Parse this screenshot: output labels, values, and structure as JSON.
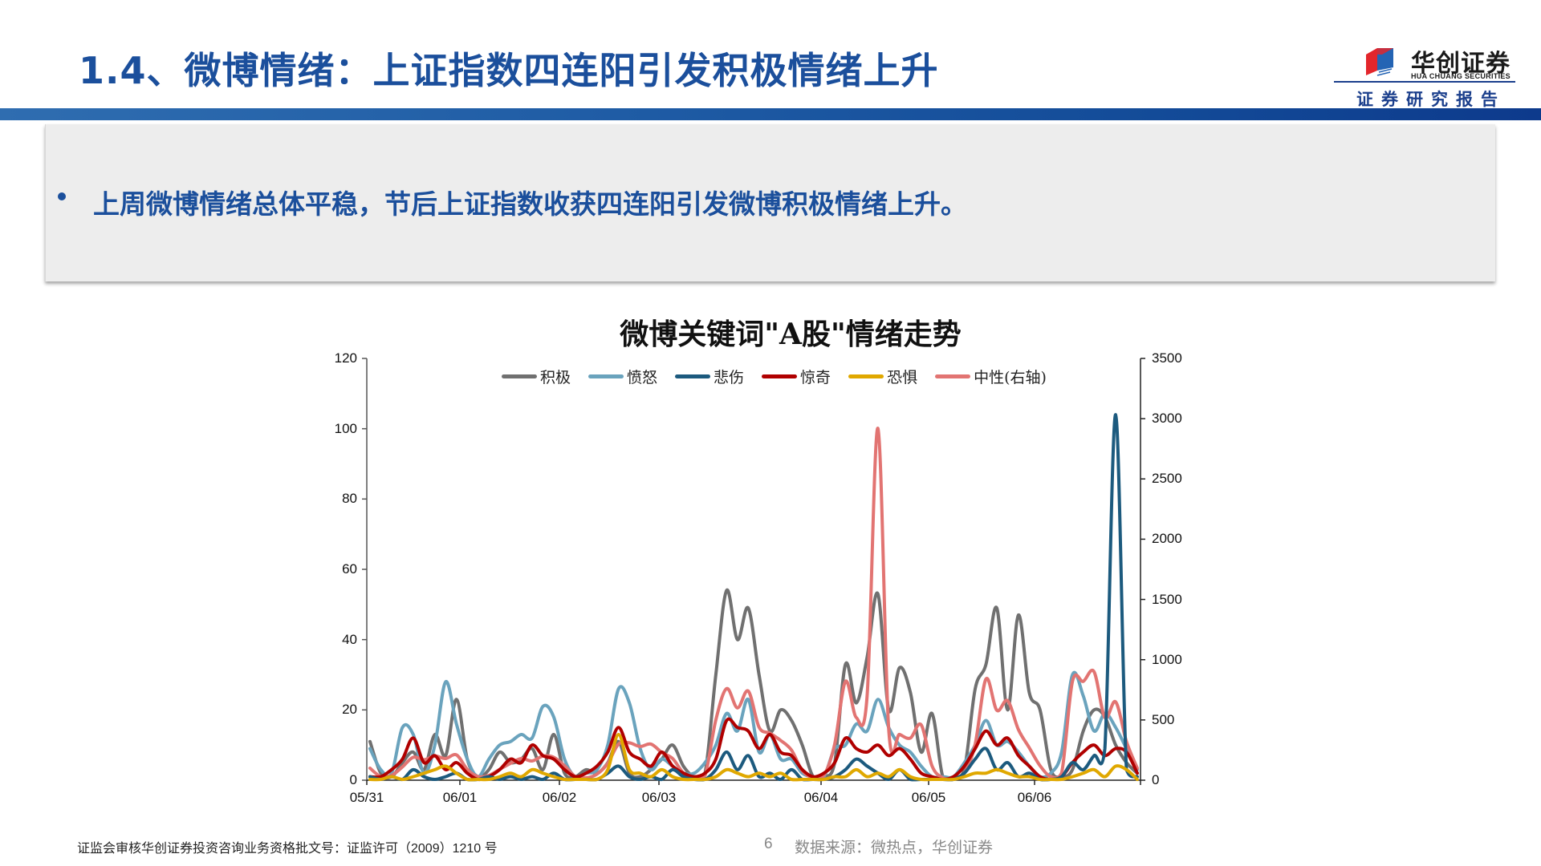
{
  "header": {
    "title": "1.4、微博情绪：上证指数四连阳引发积极情绪上升",
    "logo": {
      "name_cn": "华创证券",
      "name_en": "HUA CHUANG SECURITIES",
      "subtitle": "证券研究报告"
    }
  },
  "summary": {
    "bullets": [
      "上周微博情绪总体平稳，节后上证指数收获四连阳引发微博积极情绪上升。"
    ]
  },
  "footer": {
    "license": "证监会审核华创证券投资咨询业务资格批文号：证监许可（2009）1210 号",
    "page": "6",
    "source": "数据来源：微热点，华创证券"
  },
  "colors": {
    "brand_blue": "#1b4f9c",
    "positive": "#707070",
    "anger": "#6aa3bd",
    "sadness": "#1c5a7e",
    "surprise": "#b00000",
    "fear": "#e0a800",
    "neutral": "#e27472"
  },
  "chart_data": {
    "type": "line",
    "title": "微博关键词\"A股\"情绪走势",
    "xlabel": "",
    "ylabel": "",
    "x_tick_labels": [
      "05/31",
      "06/01",
      "06/02",
      "06/03",
      "06/04",
      "06/05",
      "06/06"
    ],
    "y_left": {
      "range": [
        0,
        120
      ],
      "ticks": [
        0,
        20,
        40,
        60,
        80,
        100,
        120
      ]
    },
    "y_right": {
      "range": [
        0,
        3500
      ],
      "ticks": [
        0,
        500,
        1000,
        1500,
        2000,
        2500,
        3000,
        3500
      ]
    },
    "legend_position": "top",
    "grid": false,
    "x_description": "hourly samples from 05/31 through 06/06 (approx. 6 per day shown as key points)",
    "series": [
      {
        "name": "积极",
        "axis": "left",
        "color": "#707070",
        "values": [
          11,
          2,
          1,
          5,
          8,
          3,
          13,
          7,
          23,
          6,
          1,
          3,
          8,
          5,
          6,
          9,
          3,
          13,
          2,
          1,
          3,
          2,
          5,
          11,
          2,
          1,
          3,
          6,
          10,
          4,
          1,
          2,
          30,
          54,
          40,
          49,
          30,
          14,
          20,
          17,
          10,
          1,
          1,
          5,
          33,
          22,
          35,
          53,
          20,
          32,
          25,
          8,
          19,
          1,
          1,
          3,
          26,
          33,
          49,
          20,
          47,
          25,
          20,
          3,
          1,
          3,
          14,
          20,
          18,
          10,
          5,
          2
        ]
      },
      {
        "name": "愤怒",
        "axis": "left",
        "color": "#6aa3bd",
        "values": [
          9,
          3,
          2,
          15,
          13,
          2,
          10,
          28,
          16,
          6,
          1,
          6,
          10,
          11,
          13,
          12,
          21,
          18,
          6,
          1,
          2,
          3,
          10,
          26,
          22,
          9,
          3,
          6,
          4,
          2,
          2,
          5,
          10,
          19,
          14,
          23,
          8,
          13,
          6,
          6,
          2,
          1,
          1,
          9,
          10,
          16,
          14,
          23,
          15,
          10,
          8,
          4,
          1,
          1,
          1,
          5,
          10,
          17,
          10,
          11,
          8,
          4,
          1,
          2,
          8,
          30,
          24,
          14,
          19,
          15,
          9,
          3
        ]
      },
      {
        "name": "悲伤",
        "axis": "left",
        "color": "#1c5a7e",
        "values": [
          1,
          0,
          1,
          0,
          3,
          1,
          0,
          1,
          2,
          0,
          0,
          1,
          0,
          1,
          0,
          1,
          0,
          2,
          0,
          0,
          0,
          0,
          2,
          4,
          1,
          0,
          1,
          0,
          3,
          1,
          0,
          0,
          3,
          8,
          3,
          7,
          1,
          2,
          0,
          3,
          0,
          0,
          0,
          1,
          3,
          6,
          4,
          2,
          0,
          3,
          0,
          0,
          0,
          0,
          0,
          2,
          6,
          9,
          3,
          5,
          1,
          2,
          0,
          0,
          1,
          5,
          3,
          7,
          9,
          104,
          3,
          1
        ]
      },
      {
        "name": "惊奇",
        "axis": "left",
        "color": "#b00000",
        "values": [
          1,
          1,
          3,
          6,
          12,
          5,
          7,
          3,
          5,
          2,
          0,
          1,
          3,
          6,
          5,
          10,
          7,
          6,
          3,
          1,
          2,
          4,
          8,
          15,
          8,
          6,
          4,
          8,
          4,
          2,
          1,
          2,
          6,
          17,
          15,
          14,
          9,
          13,
          8,
          7,
          3,
          1,
          2,
          5,
          12,
          9,
          8,
          10,
          7,
          9,
          6,
          2,
          1,
          0,
          1,
          4,
          9,
          14,
          10,
          12,
          7,
          4,
          1,
          0,
          1,
          5,
          8,
          10,
          7,
          9,
          8,
          2
        ]
      },
      {
        "name": "恐惧",
        "axis": "left",
        "color": "#e0a800",
        "values": [
          0,
          0,
          1,
          0,
          1,
          2,
          3,
          4,
          2,
          0,
          0,
          0,
          1,
          2,
          1,
          3,
          2,
          1,
          0,
          0,
          0,
          0,
          3,
          13,
          3,
          2,
          1,
          3,
          1,
          0,
          0,
          0,
          1,
          3,
          2,
          1,
          2,
          1,
          2,
          0,
          0,
          0,
          0,
          1,
          1,
          3,
          1,
          2,
          1,
          3,
          1,
          0,
          0,
          0,
          0,
          1,
          2,
          2,
          3,
          2,
          1,
          1,
          0,
          0,
          0,
          1,
          2,
          3,
          1,
          4,
          3,
          0
        ]
      },
      {
        "name": "中性(右轴)",
        "axis": "right",
        "color": "#e27472",
        "values": [
          100,
          30,
          40,
          110,
          190,
          170,
          200,
          180,
          210,
          90,
          30,
          40,
          90,
          140,
          180,
          160,
          200,
          190,
          120,
          30,
          20,
          50,
          140,
          300,
          310,
          280,
          300,
          230,
          180,
          60,
          20,
          40,
          500,
          760,
          600,
          740,
          440,
          390,
          330,
          250,
          80,
          20,
          40,
          300,
          820,
          520,
          700,
          2920,
          420,
          380,
          350,
          460,
          120,
          20,
          20,
          60,
          300,
          840,
          580,
          660,
          420,
          270,
          120,
          30,
          60,
          820,
          820,
          900,
          520,
          650,
          320,
          100
        ]
      }
    ]
  },
  "legend": {
    "items": [
      {
        "label": "积极",
        "color": "#707070"
      },
      {
        "label": "愤怒",
        "color": "#6aa3bd"
      },
      {
        "label": "悲伤",
        "color": "#1c5a7e"
      },
      {
        "label": "惊奇",
        "color": "#b00000"
      },
      {
        "label": "恐惧",
        "color": "#e0a800"
      },
      {
        "label": "中性(右轴)",
        "color": "#e27472"
      }
    ]
  }
}
